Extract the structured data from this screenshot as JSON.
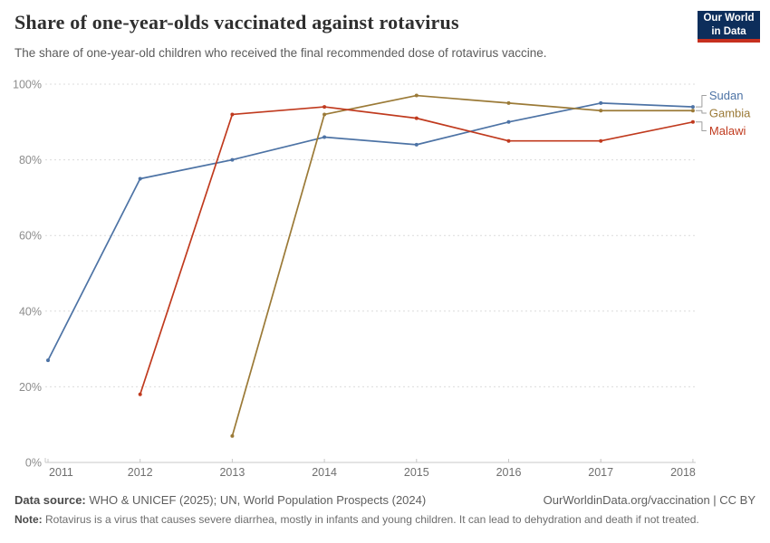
{
  "header": {
    "title": "Share of one-year-olds vaccinated against rotavirus",
    "subtitle": "The share of one-year-old children who received the final recommended dose of rotavirus vaccine.",
    "logo": {
      "line1": "Our World",
      "line2": "in Data",
      "bg_color": "#0D2E5B",
      "bar_color": "#C6301F"
    }
  },
  "chart_data": {
    "type": "line",
    "title": "Share of one-year-olds vaccinated against rotavirus",
    "x_ticks": [
      2011,
      2012,
      2013,
      2014,
      2015,
      2016,
      2017,
      2018
    ],
    "yticks": [
      0,
      20,
      40,
      60,
      80,
      100
    ],
    "ylim": [
      0,
      100
    ],
    "ytick_suffix": "%",
    "grid": "horizontal-dashed",
    "legend_position": "right-of-line-ends",
    "series": [
      {
        "name": "Sudan",
        "color": "#4D73A5",
        "x": [
          2011,
          2012,
          2013,
          2014,
          2015,
          2016,
          2017,
          2018
        ],
        "values": [
          27,
          75,
          80,
          86,
          84,
          90,
          95,
          94
        ]
      },
      {
        "name": "Gambia",
        "color": "#9B7A37",
        "x": [
          2013,
          2014,
          2015,
          2016,
          2017,
          2018
        ],
        "values": [
          7,
          92,
          97,
          95,
          93,
          93
        ]
      },
      {
        "name": "Malawi",
        "color": "#C03A1E",
        "x": [
          2012,
          2013,
          2014,
          2015,
          2016,
          2017,
          2018
        ],
        "values": [
          18,
          92,
          94,
          91,
          85,
          85,
          90
        ]
      }
    ]
  },
  "footer": {
    "datasource_label": "Data source:",
    "datasource_text": " WHO & UNICEF (2025); UN, World Population Prospects (2024)",
    "rights": "OurWorldinData.org/vaccination | CC BY",
    "note_label": "Note:",
    "note_text": " Rotavirus is a virus that causes severe diarrhea, mostly in infants and young children. It can lead to dehydration and death if not treated."
  }
}
